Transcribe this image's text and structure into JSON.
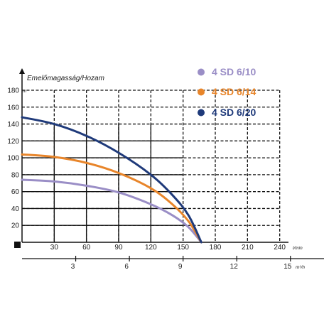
{
  "chart_data": {
    "type": "line",
    "ylabel": "Emelőmagasság/Hozam",
    "y_unit": "m",
    "x_unit": "l/min",
    "x2_unit": "m³/h",
    "xlim": [
      0,
      240
    ],
    "ylim": [
      0,
      180
    ],
    "x_ticks": [
      30,
      60,
      90,
      120,
      150,
      180,
      210,
      240
    ],
    "x2_ticks": [
      3,
      6,
      9,
      12,
      15
    ],
    "y_ticks": [
      20,
      40,
      60,
      80,
      100,
      120,
      140,
      160,
      180
    ],
    "grid": true,
    "legend_position": "top-right",
    "series": [
      {
        "name": "4 SD 6/10",
        "color": "#9a8ec6",
        "x": [
          0,
          30,
          60,
          90,
          120,
          140,
          155,
          167
        ],
        "y": [
          74,
          72,
          67,
          59,
          45,
          32,
          18,
          0
        ]
      },
      {
        "name": "4 SD 6/14",
        "color": "#e8852a",
        "x": [
          0,
          30,
          60,
          90,
          120,
          140,
          155,
          167
        ],
        "y": [
          104,
          101,
          94,
          82,
          64,
          45,
          25,
          0
        ]
      },
      {
        "name": "4 SD 6/20",
        "color": "#1f3a7a",
        "x": [
          0,
          30,
          60,
          90,
          120,
          140,
          155,
          167
        ],
        "y": [
          148,
          140,
          126,
          106,
          80,
          56,
          32,
          0
        ]
      }
    ]
  }
}
